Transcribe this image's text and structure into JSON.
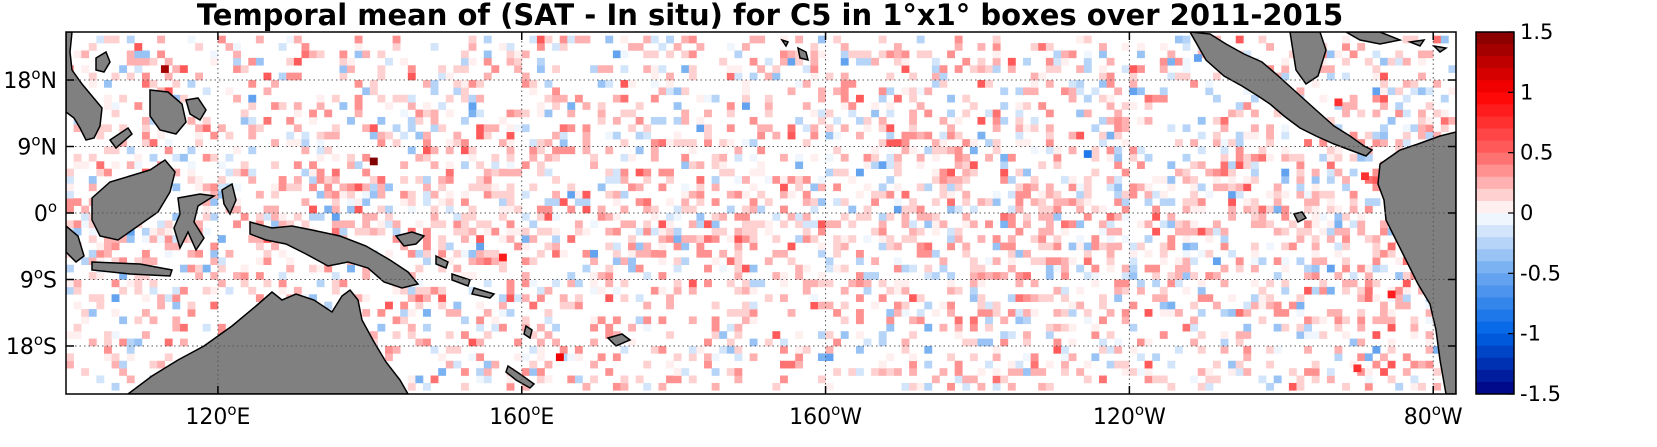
{
  "title": "Temporal mean of (SAT - In situ) for C5 in 1°x1° boxes over 2011-2015",
  "map": {
    "projection": "equirectangular",
    "lon_range": [
      100,
      283
    ],
    "lat_range": [
      -24.5,
      24.5
    ],
    "land_color": "#808080",
    "gridlines": "dotted"
  },
  "x_ticks": [
    {
      "label": "120",
      "deg": "o",
      "hemi": "E",
      "lon": 120
    },
    {
      "label": "160",
      "deg": "o",
      "hemi": "E",
      "lon": 160
    },
    {
      "label": "160",
      "deg": "o",
      "hemi": "W",
      "lon": 200
    },
    {
      "label": "120",
      "deg": "o",
      "hemi": "W",
      "lon": 240
    },
    {
      "label": "80",
      "deg": "o",
      "hemi": "W",
      "lon": 280
    }
  ],
  "y_ticks": [
    {
      "label": "18",
      "deg": "o",
      "hemi": "N",
      "lat": 18
    },
    {
      "label": "9",
      "deg": "o",
      "hemi": "N",
      "lat": 9
    },
    {
      "label": "0",
      "deg": "o",
      "hemi": "",
      "lat": 0
    },
    {
      "label": "9",
      "deg": "o",
      "hemi": "S",
      "lat": -9
    },
    {
      "label": "18",
      "deg": "o",
      "hemi": "S",
      "lat": -18
    }
  ],
  "colorbar": {
    "vmin": -1.5,
    "vmax": 1.5,
    "levels": 30,
    "labels": [
      "1.5",
      "1",
      "0.5",
      "0",
      "-0.5",
      "-1",
      "-1.5"
    ],
    "label_values": [
      1.5,
      1,
      0.5,
      0,
      -0.5,
      -1,
      -1.5
    ],
    "neg_color": "#000080",
    "mid_color": "#ffffff",
    "pos_color": "#800000"
  },
  "chart_data": {
    "type": "heatmap",
    "title": "Temporal mean of (SAT - In situ) for C5 in 1°x1° boxes over 2011-2015",
    "units_note": "",
    "notable_cells": [
      {
        "lon": 113,
        "lat": 19.5,
        "value": 1.4
      },
      {
        "lon": 140.5,
        "lat": 7,
        "value": 1.5
      },
      {
        "lon": 157.5,
        "lat": -6,
        "value": 0.9
      },
      {
        "lon": 165,
        "lat": -19.5,
        "value": 1.0
      },
      {
        "lon": 234.5,
        "lat": 8,
        "value": -0.8
      },
      {
        "lon": 249,
        "lat": 21,
        "value": -0.6
      },
      {
        "lon": 267.5,
        "lat": 15,
        "value": 0.8
      },
      {
        "lon": 271,
        "lat": 5,
        "value": 0.8
      },
      {
        "lon": 280,
        "lat": 2.5,
        "value": 0.9
      },
      {
        "lon": 274.5,
        "lat": -11,
        "value": 0.9
      },
      {
        "lon": 270,
        "lat": -21,
        "value": 0.8
      }
    ],
    "background": "sparse scattered cells of small magnitude (mostly -0.3 to 0.4), pink-dominated near the equator and in the east"
  }
}
